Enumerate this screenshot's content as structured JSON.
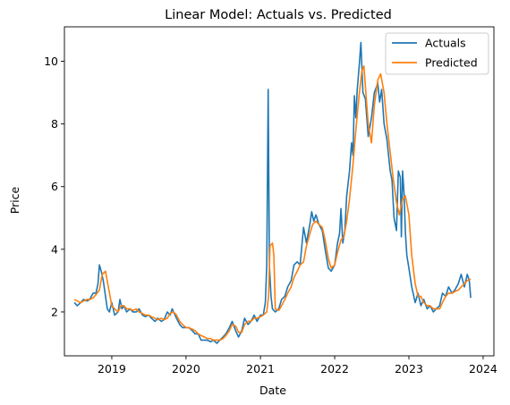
{
  "chart_data": {
    "type": "line",
    "title": "Linear Model: Actuals vs. Predicted",
    "xlabel": "Date",
    "ylabel": "Price",
    "xlim": [
      "2018-05-13",
      "2024-02-23"
    ],
    "ylim": [
      0.6,
      11.1
    ],
    "x_ticks": [
      "2019",
      "2020",
      "2021",
      "2022",
      "2023",
      "2024"
    ],
    "y_ticks": [
      2,
      4,
      6,
      8,
      10
    ],
    "grid": false,
    "legend_position": "top-right",
    "colors": {
      "actuals": "#1f77b4",
      "predicted": "#ff7f0e"
    },
    "series": [
      {
        "name": "Actuals",
        "points": [
          [
            "2018-07-01",
            2.3
          ],
          [
            "2018-07-15",
            2.2
          ],
          [
            "2018-08-01",
            2.3
          ],
          [
            "2018-08-15",
            2.4
          ],
          [
            "2018-09-01",
            2.35
          ],
          [
            "2018-09-15",
            2.4
          ],
          [
            "2018-10-01",
            2.6
          ],
          [
            "2018-10-15",
            2.6
          ],
          [
            "2018-10-25",
            2.9
          ],
          [
            "2018-11-01",
            3.5
          ],
          [
            "2018-11-10",
            3.3
          ],
          [
            "2018-11-20",
            3.0
          ],
          [
            "2018-12-01",
            2.5
          ],
          [
            "2018-12-10",
            2.1
          ],
          [
            "2018-12-20",
            2.0
          ],
          [
            "2019-01-01",
            2.3
          ],
          [
            "2019-01-15",
            1.9
          ],
          [
            "2019-02-01",
            2.0
          ],
          [
            "2019-02-10",
            2.4
          ],
          [
            "2019-02-20",
            2.1
          ],
          [
            "2019-03-01",
            2.2
          ],
          [
            "2019-03-15",
            2.0
          ],
          [
            "2019-04-01",
            2.1
          ],
          [
            "2019-04-15",
            2.0
          ],
          [
            "2019-05-01",
            2.0
          ],
          [
            "2019-05-15",
            2.1
          ],
          [
            "2019-06-01",
            1.9
          ],
          [
            "2019-06-15",
            1.85
          ],
          [
            "2019-07-01",
            1.9
          ],
          [
            "2019-07-15",
            1.8
          ],
          [
            "2019-08-01",
            1.7
          ],
          [
            "2019-08-15",
            1.8
          ],
          [
            "2019-09-01",
            1.7
          ],
          [
            "2019-09-15",
            1.75
          ],
          [
            "2019-10-01",
            2.0
          ],
          [
            "2019-10-15",
            1.9
          ],
          [
            "2019-10-25",
            2.1
          ],
          [
            "2019-11-01",
            2.0
          ],
          [
            "2019-11-15",
            1.8
          ],
          [
            "2019-12-01",
            1.6
          ],
          [
            "2019-12-15",
            1.5
          ],
          [
            "2020-01-01",
            1.5
          ],
          [
            "2020-01-15",
            1.5
          ],
          [
            "2020-02-01",
            1.4
          ],
          [
            "2020-02-15",
            1.3
          ],
          [
            "2020-03-01",
            1.3
          ],
          [
            "2020-03-15",
            1.1
          ],
          [
            "2020-04-01",
            1.1
          ],
          [
            "2020-04-15",
            1.1
          ],
          [
            "2020-05-01",
            1.05
          ],
          [
            "2020-05-15",
            1.1
          ],
          [
            "2020-06-01",
            1.0
          ],
          [
            "2020-06-15",
            1.1
          ],
          [
            "2020-07-01",
            1.2
          ],
          [
            "2020-07-15",
            1.3
          ],
          [
            "2020-08-01",
            1.5
          ],
          [
            "2020-08-15",
            1.7
          ],
          [
            "2020-09-01",
            1.4
          ],
          [
            "2020-09-15",
            1.2
          ],
          [
            "2020-10-01",
            1.4
          ],
          [
            "2020-10-15",
            1.8
          ],
          [
            "2020-11-01",
            1.6
          ],
          [
            "2020-11-15",
            1.7
          ],
          [
            "2020-12-01",
            1.9
          ],
          [
            "2020-12-15",
            1.7
          ],
          [
            "2021-01-01",
            1.9
          ],
          [
            "2021-01-15",
            1.9
          ],
          [
            "2021-01-25",
            2.3
          ],
          [
            "2021-02-01",
            3.5
          ],
          [
            "2021-02-08",
            9.1
          ],
          [
            "2021-02-14",
            3.5
          ],
          [
            "2021-02-22",
            2.5
          ],
          [
            "2021-03-01",
            2.1
          ],
          [
            "2021-03-15",
            2.0
          ],
          [
            "2021-04-01",
            2.1
          ],
          [
            "2021-04-15",
            2.4
          ],
          [
            "2021-05-01",
            2.5
          ],
          [
            "2021-05-15",
            2.8
          ],
          [
            "2021-06-01",
            3.0
          ],
          [
            "2021-06-15",
            3.5
          ],
          [
            "2021-07-01",
            3.6
          ],
          [
            "2021-07-15",
            3.5
          ],
          [
            "2021-08-01",
            4.7
          ],
          [
            "2021-08-15",
            4.2
          ],
          [
            "2021-09-01",
            4.8
          ],
          [
            "2021-09-10",
            5.2
          ],
          [
            "2021-09-20",
            4.9
          ],
          [
            "2021-10-01",
            5.1
          ],
          [
            "2021-10-15",
            4.8
          ],
          [
            "2021-11-01",
            4.6
          ],
          [
            "2021-11-15",
            4.0
          ],
          [
            "2021-12-01",
            3.4
          ],
          [
            "2021-12-15",
            3.3
          ],
          [
            "2022-01-01",
            3.5
          ],
          [
            "2022-01-15",
            4.2
          ],
          [
            "2022-01-25",
            4.5
          ],
          [
            "2022-02-01",
            5.3
          ],
          [
            "2022-02-10",
            4.2
          ],
          [
            "2022-02-20",
            4.6
          ],
          [
            "2022-03-01",
            5.7
          ],
          [
            "2022-03-15",
            6.5
          ],
          [
            "2022-03-25",
            7.4
          ],
          [
            "2022-04-01",
            7.0
          ],
          [
            "2022-04-08",
            8.9
          ],
          [
            "2022-04-15",
            8.2
          ],
          [
            "2022-04-22",
            9.1
          ],
          [
            "2022-05-01",
            9.8
          ],
          [
            "2022-05-10",
            10.6
          ],
          [
            "2022-05-20",
            9.0
          ],
          [
            "2022-06-01",
            8.8
          ],
          [
            "2022-06-15",
            7.6
          ],
          [
            "2022-07-01",
            8.2
          ],
          [
            "2022-07-15",
            9.0
          ],
          [
            "2022-08-01",
            9.3
          ],
          [
            "2022-08-10",
            8.7
          ],
          [
            "2022-08-20",
            9.1
          ],
          [
            "2022-09-01",
            8.0
          ],
          [
            "2022-09-15",
            7.5
          ],
          [
            "2022-10-01",
            6.5
          ],
          [
            "2022-10-10",
            6.2
          ],
          [
            "2022-10-20",
            5.0
          ],
          [
            "2022-11-01",
            4.6
          ],
          [
            "2022-11-10",
            6.5
          ],
          [
            "2022-11-20",
            6.3
          ],
          [
            "2022-11-25",
            4.4
          ],
          [
            "2022-12-01",
            6.5
          ],
          [
            "2022-12-08",
            5.8
          ],
          [
            "2022-12-15",
            4.5
          ],
          [
            "2022-12-22",
            3.8
          ],
          [
            "2023-01-01",
            3.4
          ],
          [
            "2023-01-15",
            2.8
          ],
          [
            "2023-02-01",
            2.3
          ],
          [
            "2023-02-15",
            2.6
          ],
          [
            "2023-03-01",
            2.2
          ],
          [
            "2023-03-15",
            2.4
          ],
          [
            "2023-04-01",
            2.1
          ],
          [
            "2023-04-15",
            2.2
          ],
          [
            "2023-05-01",
            2.0
          ],
          [
            "2023-05-15",
            2.1
          ],
          [
            "2023-06-01",
            2.2
          ],
          [
            "2023-06-15",
            2.6
          ],
          [
            "2023-07-01",
            2.5
          ],
          [
            "2023-07-15",
            2.8
          ],
          [
            "2023-08-01",
            2.6
          ],
          [
            "2023-08-15",
            2.7
          ],
          [
            "2023-09-01",
            2.9
          ],
          [
            "2023-09-15",
            3.2
          ],
          [
            "2023-10-01",
            2.8
          ],
          [
            "2023-10-15",
            3.2
          ],
          [
            "2023-10-25",
            3.0
          ],
          [
            "2023-11-01",
            2.45
          ]
        ]
      },
      {
        "name": "Predicted",
        "points": [
          [
            "2018-07-01",
            2.4
          ],
          [
            "2018-07-15",
            2.35
          ],
          [
            "2018-08-01",
            2.3
          ],
          [
            "2018-08-15",
            2.35
          ],
          [
            "2018-09-01",
            2.4
          ],
          [
            "2018-09-15",
            2.4
          ],
          [
            "2018-10-01",
            2.45
          ],
          [
            "2018-10-15",
            2.55
          ],
          [
            "2018-11-01",
            2.7
          ],
          [
            "2018-11-15",
            3.2
          ],
          [
            "2018-12-01",
            3.3
          ],
          [
            "2018-12-15",
            2.8
          ],
          [
            "2019-01-01",
            2.2
          ],
          [
            "2019-01-15",
            2.1
          ],
          [
            "2019-02-01",
            2.0
          ],
          [
            "2019-02-15",
            2.2
          ],
          [
            "2019-03-01",
            2.2
          ],
          [
            "2019-03-15",
            2.1
          ],
          [
            "2019-04-01",
            2.1
          ],
          [
            "2019-04-15",
            2.05
          ],
          [
            "2019-05-01",
            2.1
          ],
          [
            "2019-05-15",
            2.0
          ],
          [
            "2019-06-01",
            1.95
          ],
          [
            "2019-06-15",
            1.9
          ],
          [
            "2019-07-01",
            1.9
          ],
          [
            "2019-07-15",
            1.85
          ],
          [
            "2019-08-01",
            1.8
          ],
          [
            "2019-08-15",
            1.75
          ],
          [
            "2019-09-01",
            1.8
          ],
          [
            "2019-09-15",
            1.75
          ],
          [
            "2019-10-01",
            1.8
          ],
          [
            "2019-10-15",
            1.95
          ],
          [
            "2019-11-01",
            2.0
          ],
          [
            "2019-11-15",
            1.9
          ],
          [
            "2019-12-01",
            1.7
          ],
          [
            "2019-12-15",
            1.6
          ],
          [
            "2020-01-01",
            1.5
          ],
          [
            "2020-01-15",
            1.5
          ],
          [
            "2020-02-01",
            1.45
          ],
          [
            "2020-02-15",
            1.4
          ],
          [
            "2020-03-01",
            1.3
          ],
          [
            "2020-03-15",
            1.25
          ],
          [
            "2020-04-01",
            1.2
          ],
          [
            "2020-04-15",
            1.15
          ],
          [
            "2020-05-01",
            1.15
          ],
          [
            "2020-05-15",
            1.1
          ],
          [
            "2020-06-01",
            1.1
          ],
          [
            "2020-06-15",
            1.1
          ],
          [
            "2020-07-01",
            1.15
          ],
          [
            "2020-07-15",
            1.25
          ],
          [
            "2020-08-01",
            1.4
          ],
          [
            "2020-08-15",
            1.6
          ],
          [
            "2020-09-01",
            1.55
          ],
          [
            "2020-09-15",
            1.35
          ],
          [
            "2020-10-01",
            1.35
          ],
          [
            "2020-10-15",
            1.6
          ],
          [
            "2020-11-01",
            1.7
          ],
          [
            "2020-11-15",
            1.7
          ],
          [
            "2020-12-01",
            1.8
          ],
          [
            "2020-12-15",
            1.8
          ],
          [
            "2021-01-01",
            1.85
          ],
          [
            "2021-01-15",
            1.9
          ],
          [
            "2021-02-01",
            2.0
          ],
          [
            "2021-02-10",
            2.5
          ],
          [
            "2021-02-17",
            4.1
          ],
          [
            "2021-03-01",
            4.2
          ],
          [
            "2021-03-08",
            3.8
          ],
          [
            "2021-03-15",
            2.1
          ],
          [
            "2021-04-01",
            2.05
          ],
          [
            "2021-04-15",
            2.2
          ],
          [
            "2021-05-01",
            2.4
          ],
          [
            "2021-05-15",
            2.6
          ],
          [
            "2021-06-01",
            2.8
          ],
          [
            "2021-06-15",
            3.1
          ],
          [
            "2021-07-01",
            3.3
          ],
          [
            "2021-07-15",
            3.5
          ],
          [
            "2021-08-01",
            3.6
          ],
          [
            "2021-08-15",
            4.1
          ],
          [
            "2021-09-01",
            4.5
          ],
          [
            "2021-09-15",
            4.8
          ],
          [
            "2021-10-01",
            4.9
          ],
          [
            "2021-10-15",
            4.8
          ],
          [
            "2021-11-01",
            4.7
          ],
          [
            "2021-11-15",
            4.3
          ],
          [
            "2021-12-01",
            3.7
          ],
          [
            "2021-12-15",
            3.4
          ],
          [
            "2022-01-01",
            3.5
          ],
          [
            "2022-01-15",
            3.9
          ],
          [
            "2022-02-01",
            4.3
          ],
          [
            "2022-02-15",
            4.4
          ],
          [
            "2022-03-01",
            4.9
          ],
          [
            "2022-03-15",
            5.6
          ],
          [
            "2022-04-01",
            6.7
          ],
          [
            "2022-04-15",
            7.8
          ],
          [
            "2022-05-01",
            8.9
          ],
          [
            "2022-05-15",
            9.7
          ],
          [
            "2022-05-25",
            9.85
          ],
          [
            "2022-06-01",
            9.2
          ],
          [
            "2022-06-15",
            8.0
          ],
          [
            "2022-07-01",
            7.4
          ],
          [
            "2022-07-15",
            8.6
          ],
          [
            "2022-08-01",
            9.4
          ],
          [
            "2022-08-15",
            9.6
          ],
          [
            "2022-09-01",
            9.0
          ],
          [
            "2022-09-15",
            8.0
          ],
          [
            "2022-10-01",
            7.1
          ],
          [
            "2022-10-15",
            6.3
          ],
          [
            "2022-11-01",
            5.5
          ],
          [
            "2022-11-15",
            5.1
          ],
          [
            "2022-12-01",
            5.6
          ],
          [
            "2022-12-15",
            5.7
          ],
          [
            "2023-01-01",
            5.1
          ],
          [
            "2023-01-15",
            3.8
          ],
          [
            "2023-02-01",
            2.9
          ],
          [
            "2023-02-15",
            2.5
          ],
          [
            "2023-03-01",
            2.5
          ],
          [
            "2023-03-15",
            2.3
          ],
          [
            "2023-04-01",
            2.2
          ],
          [
            "2023-04-15",
            2.2
          ],
          [
            "2023-05-01",
            2.1
          ],
          [
            "2023-05-15",
            2.1
          ],
          [
            "2023-06-01",
            2.1
          ],
          [
            "2023-06-15",
            2.3
          ],
          [
            "2023-07-01",
            2.5
          ],
          [
            "2023-07-15",
            2.6
          ],
          [
            "2023-08-01",
            2.6
          ],
          [
            "2023-08-15",
            2.65
          ],
          [
            "2023-09-01",
            2.7
          ],
          [
            "2023-09-15",
            2.8
          ],
          [
            "2023-10-01",
            2.9
          ],
          [
            "2023-10-15",
            3.0
          ],
          [
            "2023-11-01",
            3.05
          ]
        ]
      }
    ]
  }
}
